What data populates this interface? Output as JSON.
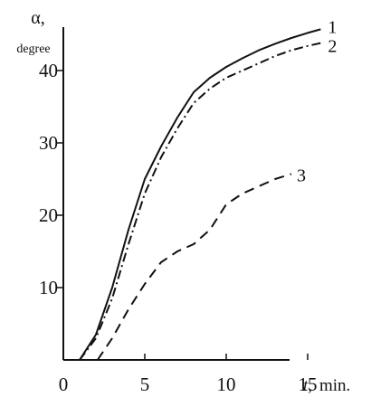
{
  "chart_data": {
    "type": "line",
    "ylabel": "α,",
    "ylabel_unit": "degree",
    "xlabel_symbol": "t,",
    "xlabel_unit": "min.",
    "xlim": [
      0,
      17
    ],
    "ylim": [
      0,
      47
    ],
    "x_ticks": [
      0,
      5,
      10,
      15
    ],
    "y_ticks": [
      10,
      20,
      30,
      40
    ],
    "grid": false,
    "series": [
      {
        "name": "1",
        "style": "solid",
        "points": [
          [
            1,
            0
          ],
          [
            2,
            3.5
          ],
          [
            3,
            10
          ],
          [
            4,
            18
          ],
          [
            5,
            25
          ],
          [
            6,
            29.5
          ],
          [
            7,
            33.5
          ],
          [
            8,
            37
          ],
          [
            9,
            39
          ],
          [
            10,
            40.5
          ],
          [
            11,
            41.7
          ],
          [
            12,
            42.8
          ],
          [
            13,
            43.7
          ],
          [
            14,
            44.5
          ],
          [
            15,
            45.2
          ],
          [
            15.8,
            45.7
          ]
        ]
      },
      {
        "name": "2",
        "style": "dash-dot",
        "points": [
          [
            1,
            0
          ],
          [
            2,
            3
          ],
          [
            3,
            8.5
          ],
          [
            4,
            16
          ],
          [
            5,
            23
          ],
          [
            6,
            28
          ],
          [
            7,
            32
          ],
          [
            8,
            35.5
          ],
          [
            9,
            37.5
          ],
          [
            10,
            39
          ],
          [
            11,
            40
          ],
          [
            12,
            41
          ],
          [
            13,
            42
          ],
          [
            14,
            42.8
          ],
          [
            15,
            43.4
          ],
          [
            15.8,
            43.8
          ]
        ]
      },
      {
        "name": "3",
        "style": "dashed",
        "points": [
          [
            2.1,
            0
          ],
          [
            3,
            3
          ],
          [
            4,
            7
          ],
          [
            5,
            10.5
          ],
          [
            6,
            13.5
          ],
          [
            7,
            15
          ],
          [
            8,
            16
          ],
          [
            9,
            18
          ],
          [
            10,
            21.5
          ],
          [
            11,
            23
          ],
          [
            12,
            24
          ],
          [
            13,
            25
          ],
          [
            14,
            25.7
          ]
        ]
      }
    ],
    "colors": {
      "line": "#111111",
      "axis": "#111111",
      "background": "#ffffff"
    }
  }
}
